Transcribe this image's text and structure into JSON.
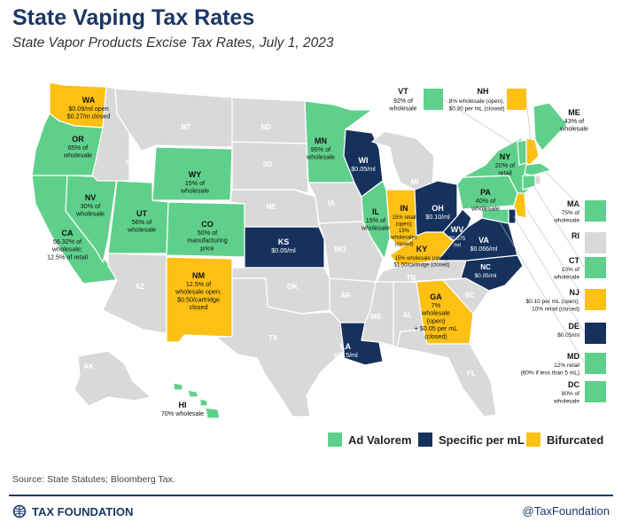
{
  "title": "State Vaping Tax Rates",
  "subtitle": "State Vapor Products Excise Tax Rates, July 1, 2023",
  "colors": {
    "ad_valorem": "#5fd08b",
    "specific": "#15315c",
    "bifurcated": "#fdc013",
    "none": "#d9d9d9",
    "border": "#ffffff"
  },
  "legend": [
    {
      "label": "Ad Valorem",
      "category": "ad_valorem"
    },
    {
      "label": "Specific per mL",
      "category": "specific"
    },
    {
      "label": "Bifurcated",
      "category": "bifurcated"
    }
  ],
  "states": {
    "WA": {
      "abbr": "WA",
      "category": "bifurcated",
      "text": [
        "$0.09/ml open",
        "$0.27/m closed"
      ]
    },
    "OR": {
      "abbr": "OR",
      "category": "ad_valorem",
      "text": [
        "65% of",
        "wholesale"
      ]
    },
    "CA": {
      "abbr": "CA",
      "category": "ad_valorem",
      "text": [
        "56.32% of",
        "wholesale;",
        "12.5% of retail"
      ]
    },
    "NV": {
      "abbr": "NV",
      "category": "ad_valorem",
      "text": [
        "30% of",
        "wholesale"
      ]
    },
    "ID": {
      "abbr": "ID",
      "category": "none",
      "text": []
    },
    "MT": {
      "abbr": "MT",
      "category": "none",
      "text": []
    },
    "WY": {
      "abbr": "WY",
      "category": "ad_valorem",
      "text": [
        "15% of",
        "wholesale"
      ]
    },
    "UT": {
      "abbr": "UT",
      "category": "ad_valorem",
      "text": [
        "56% of",
        "wholesale"
      ]
    },
    "CO": {
      "abbr": "CO",
      "category": "ad_valorem",
      "text": [
        "50% of",
        "manufacturing",
        "price"
      ]
    },
    "AZ": {
      "abbr": "AZ",
      "category": "none",
      "text": []
    },
    "NM": {
      "abbr": "NM",
      "category": "bifurcated",
      "text": [
        "12.5% of",
        "wholesale open;",
        "$0.50/cartridge",
        "closed"
      ]
    },
    "ND": {
      "abbr": "ND",
      "category": "none",
      "text": []
    },
    "SD": {
      "abbr": "SD",
      "category": "none",
      "text": []
    },
    "NE": {
      "abbr": "NE",
      "category": "none",
      "text": []
    },
    "KS": {
      "abbr": "KS",
      "category": "specific",
      "text": [
        "$0.05/ml"
      ]
    },
    "OK": {
      "abbr": "OK",
      "category": "none",
      "text": []
    },
    "TX": {
      "abbr": "TX",
      "category": "none",
      "text": []
    },
    "MN": {
      "abbr": "MN",
      "category": "ad_valorem",
      "text": [
        "95% of",
        "wholesale"
      ]
    },
    "IA": {
      "abbr": "IA",
      "category": "none",
      "text": []
    },
    "MO": {
      "abbr": "MO",
      "category": "none",
      "text": []
    },
    "AR": {
      "abbr": "AR",
      "category": "none",
      "text": []
    },
    "LA": {
      "abbr": "LA",
      "category": "specific",
      "text": [
        "$0.15/ml"
      ]
    },
    "WI": {
      "abbr": "WI",
      "category": "specific",
      "text": [
        "$0.05/ml"
      ]
    },
    "IL": {
      "abbr": "IL",
      "category": "ad_valorem",
      "text": [
        "15% of",
        "wholesale"
      ]
    },
    "MI": {
      "abbr": "MI",
      "category": "none",
      "text": []
    },
    "IN": {
      "abbr": "IN",
      "category": "bifurcated",
      "text": [
        "15% retail",
        "(open);",
        "15%",
        "wholesales",
        "(closed)"
      ]
    },
    "OH": {
      "abbr": "OH",
      "category": "specific",
      "text": [
        "$0.10/ml"
      ]
    },
    "KY": {
      "abbr": "KY",
      "category": "bifurcated",
      "text": [
        "15% wholesale (open);",
        "$1.50/cartridge (closed)"
      ]
    },
    "TN": {
      "abbr": "TN",
      "category": "none",
      "text": []
    },
    "MS": {
      "abbr": "MS",
      "category": "none",
      "text": []
    },
    "AL": {
      "abbr": "AL",
      "category": "none",
      "text": []
    },
    "GA": {
      "abbr": "GA",
      "category": "bifurcated",
      "text": [
        "7%",
        "wholesale",
        "(open)",
        "+ $0.05 per mL",
        "(closed)"
      ]
    },
    "FL": {
      "abbr": "FL",
      "category": "none",
      "text": []
    },
    "SC": {
      "abbr": "SC",
      "category": "none",
      "text": []
    },
    "NC": {
      "abbr": "NC",
      "category": "specific",
      "text": [
        "$0.05/ml"
      ]
    },
    "VA": {
      "abbr": "VA",
      "category": "specific",
      "text": [
        "$0.066/ml"
      ]
    },
    "WV": {
      "abbr": "WV",
      "category": "specific",
      "text": [
        "$0.075",
        "/ml"
      ]
    },
    "PA": {
      "abbr": "PA",
      "category": "ad_valorem",
      "text": [
        "40% of",
        "wholesale"
      ]
    },
    "NY": {
      "abbr": "NY",
      "category": "ad_valorem",
      "text": [
        "20% of",
        "retail"
      ]
    },
    "ME": {
      "abbr": "ME",
      "category": "ad_valorem",
      "text": [
        "43% of",
        "wholesale"
      ]
    },
    "VT": {
      "abbr": "VT",
      "category": "ad_valorem",
      "text": [
        "92% of",
        "wholesale"
      ]
    },
    "NH": {
      "abbr": "NH",
      "category": "bifurcated",
      "text": [
        "8% wholesale (open),",
        "$0.30 per mL (closed)"
      ]
    },
    "MA": {
      "abbr": "MA",
      "category": "ad_valorem",
      "text": [
        "75% of",
        "wholesale"
      ]
    },
    "RI": {
      "abbr": "RI",
      "category": "none",
      "text": []
    },
    "CT": {
      "abbr": "CT",
      "category": "ad_valorem",
      "text": [
        "10% of",
        "wholesale"
      ]
    },
    "NJ": {
      "abbr": "NJ",
      "category": "bifurcated",
      "text": [
        "$0.10 per mL (open);",
        "10% retail (closed)"
      ]
    },
    "DE": {
      "abbr": "DE",
      "category": "specific",
      "text": [
        "$0.05/ml"
      ]
    },
    "MD": {
      "abbr": "MD",
      "category": "ad_valorem",
      "text": [
        "12% retail",
        "(60% if less than 5 mL)"
      ]
    },
    "DC": {
      "abbr": "DC",
      "category": "ad_valorem",
      "text": [
        "80% of",
        "wholesale"
      ]
    },
    "AK": {
      "abbr": "AK",
      "category": "none",
      "text": []
    },
    "HI": {
      "abbr": "HI",
      "category": "ad_valorem",
      "text": [
        "70% wholesale"
      ]
    }
  },
  "source": "Source: State Statutes; Bloomberg Tax.",
  "brand": "TAX FOUNDATION",
  "handle": "@TaxFoundation"
}
